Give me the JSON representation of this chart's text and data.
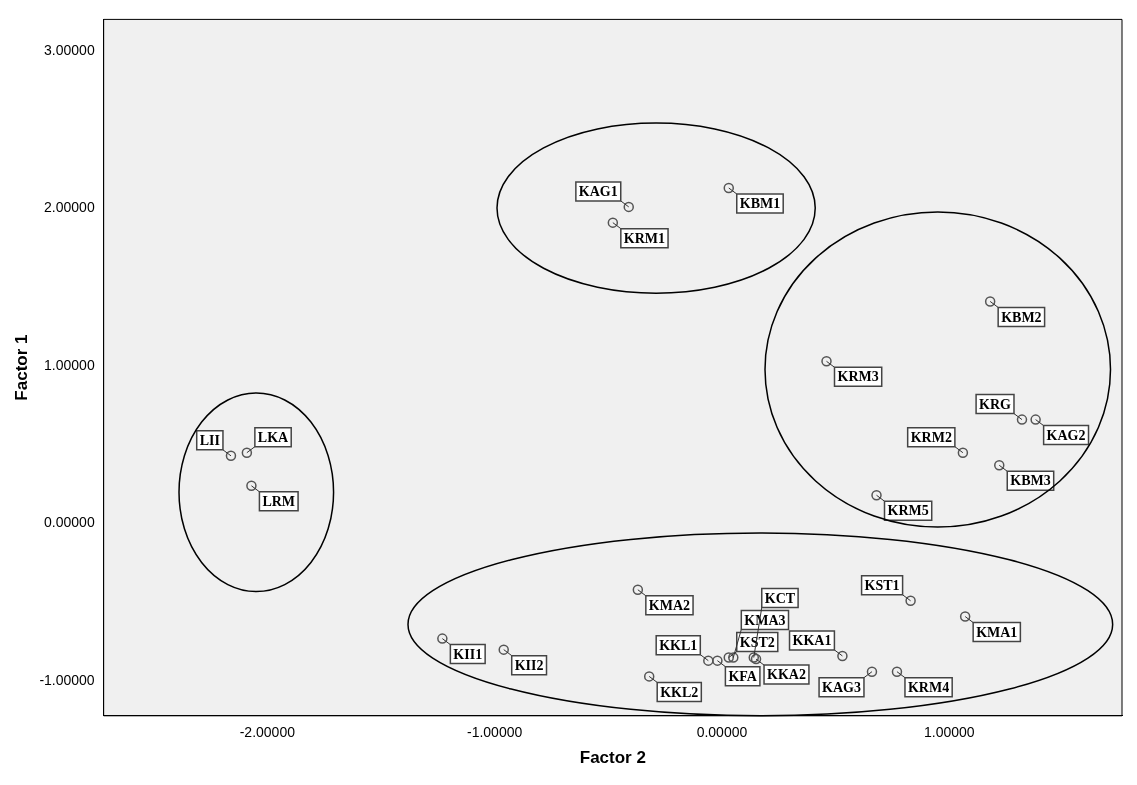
{
  "chart_data": {
    "type": "scatter",
    "xlabel": "Factor 2",
    "ylabel": "Factor 1",
    "xlim": [
      -2.72,
      1.76
    ],
    "ylim": [
      -1.22,
      3.2
    ],
    "xticks": [
      {
        "value": -2,
        "label": "-2.00000"
      },
      {
        "value": -1,
        "label": "-1.00000"
      },
      {
        "value": 0,
        "label": "0.00000"
      },
      {
        "value": 1,
        "label": "1.00000"
      }
    ],
    "yticks": [
      {
        "value": -1,
        "label": "-1.00000"
      },
      {
        "value": 0,
        "label": "0.00000"
      },
      {
        "value": 1,
        "label": "1.00000"
      },
      {
        "value": 2,
        "label": "2.00000"
      },
      {
        "value": 3,
        "label": "3.00000"
      }
    ],
    "grid": false,
    "legend": false,
    "marker": "circle",
    "series": [
      {
        "name": "KRM1",
        "color": "#555555",
        "x": [
          -0.48
        ],
        "values": [
          1.91
        ]
      },
      {
        "name": "KAG1",
        "color": "#555555",
        "x": [
          -0.41
        ],
        "values": [
          2.01
        ]
      },
      {
        "name": "KBM1",
        "color": "#555555",
        "x": [
          0.03
        ],
        "values": [
          2.13
        ]
      },
      {
        "name": "KBM2",
        "color": "#555555",
        "x": [
          1.18
        ],
        "values": [
          1.41
        ]
      },
      {
        "name": "KRM3",
        "color": "#555555",
        "x": [
          0.46
        ],
        "values": [
          1.03
        ]
      },
      {
        "name": "KRG",
        "color": "#555555",
        "x": [
          1.32
        ],
        "values": [
          0.66
        ]
      },
      {
        "name": "KAG2",
        "color": "#555555",
        "x": [
          1.38
        ],
        "values": [
          0.66
        ]
      },
      {
        "name": "KRM2",
        "color": "#555555",
        "x": [
          1.06
        ],
        "values": [
          0.45
        ]
      },
      {
        "name": "KBM3",
        "color": "#555555",
        "x": [
          1.22
        ],
        "values": [
          0.37
        ]
      },
      {
        "name": "KRM5",
        "color": "#555555",
        "x": [
          0.68
        ],
        "values": [
          0.18
        ]
      },
      {
        "name": "LKA",
        "color": "#555555",
        "x": [
          -2.09
        ],
        "values": [
          0.45
        ]
      },
      {
        "name": "LII",
        "color": "#555555",
        "x": [
          -2.16
        ],
        "values": [
          0.43
        ]
      },
      {
        "name": "LRM",
        "color": "#555555",
        "x": [
          -2.07
        ],
        "values": [
          0.24
        ]
      },
      {
        "name": "KII1",
        "color": "#555555",
        "x": [
          -1.23
        ],
        "values": [
          -0.73
        ]
      },
      {
        "name": "KII2",
        "color": "#555555",
        "x": [
          -0.96
        ],
        "values": [
          -0.8
        ]
      },
      {
        "name": "KMA2",
        "color": "#555555",
        "x": [
          -0.37
        ],
        "values": [
          -0.42
        ]
      },
      {
        "name": "KKL2",
        "color": "#555555",
        "x": [
          -0.32
        ],
        "values": [
          -0.97
        ]
      },
      {
        "name": "KKL1",
        "color": "#555555",
        "x": [
          -0.06
        ],
        "values": [
          -0.87
        ]
      },
      {
        "name": "KFA",
        "color": "#555555",
        "x": [
          -0.02
        ],
        "values": [
          -0.87
        ]
      },
      {
        "name": "KST2",
        "color": "#555555",
        "x": [
          0.03
        ],
        "values": [
          -0.85
        ]
      },
      {
        "name": "KMA3",
        "color": "#555555",
        "x": [
          0.05
        ],
        "values": [
          -0.85
        ]
      },
      {
        "name": "KCT",
        "color": "#555555",
        "x": [
          0.14
        ],
        "values": [
          -0.85
        ]
      },
      {
        "name": "KKA2",
        "color": "#555555",
        "x": [
          0.15
        ],
        "values": [
          -0.86
        ]
      },
      {
        "name": "KST1",
        "color": "#555555",
        "x": [
          0.83
        ],
        "values": [
          -0.49
        ]
      },
      {
        "name": "KMA1",
        "color": "#555555",
        "x": [
          1.07
        ],
        "values": [
          -0.59
        ]
      },
      {
        "name": "KKA1",
        "color": "#555555",
        "x": [
          0.53
        ],
        "values": [
          -0.84
        ]
      },
      {
        "name": "KAG3",
        "color": "#555555",
        "x": [
          0.66
        ],
        "values": [
          -0.94
        ]
      },
      {
        "name": "KRM4",
        "color": "#555555",
        "x": [
          0.77
        ],
        "values": [
          -0.94
        ]
      }
    ]
  }
}
